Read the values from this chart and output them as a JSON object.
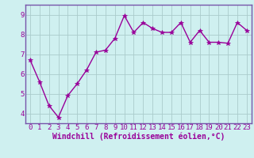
{
  "x": [
    0,
    1,
    2,
    3,
    4,
    5,
    6,
    7,
    8,
    9,
    10,
    11,
    12,
    13,
    14,
    15,
    16,
    17,
    18,
    19,
    20,
    21,
    22,
    23
  ],
  "y": [
    6.7,
    5.6,
    4.4,
    3.8,
    4.9,
    5.5,
    6.2,
    7.1,
    7.2,
    7.8,
    8.95,
    8.1,
    8.6,
    8.3,
    8.1,
    8.1,
    8.6,
    7.6,
    8.2,
    7.6,
    7.6,
    7.55,
    8.6,
    8.2
  ],
  "line_color": "#990099",
  "marker": "*",
  "marker_size": 4,
  "bg_color": "#cff0f0",
  "grid_color": "#aacccc",
  "xlabel": "Windchill (Refroidissement éolien,°C)",
  "ylim": [
    3.5,
    9.5
  ],
  "xlim": [
    -0.5,
    23.5
  ],
  "yticks": [
    4,
    5,
    6,
    7,
    8,
    9
  ],
  "xticks": [
    0,
    1,
    2,
    3,
    4,
    5,
    6,
    7,
    8,
    9,
    10,
    11,
    12,
    13,
    14,
    15,
    16,
    17,
    18,
    19,
    20,
    21,
    22,
    23
  ],
  "xlabel_fontsize": 7,
  "tick_fontsize": 6.5,
  "line_width": 1.0,
  "spine_color": "#7755aa"
}
